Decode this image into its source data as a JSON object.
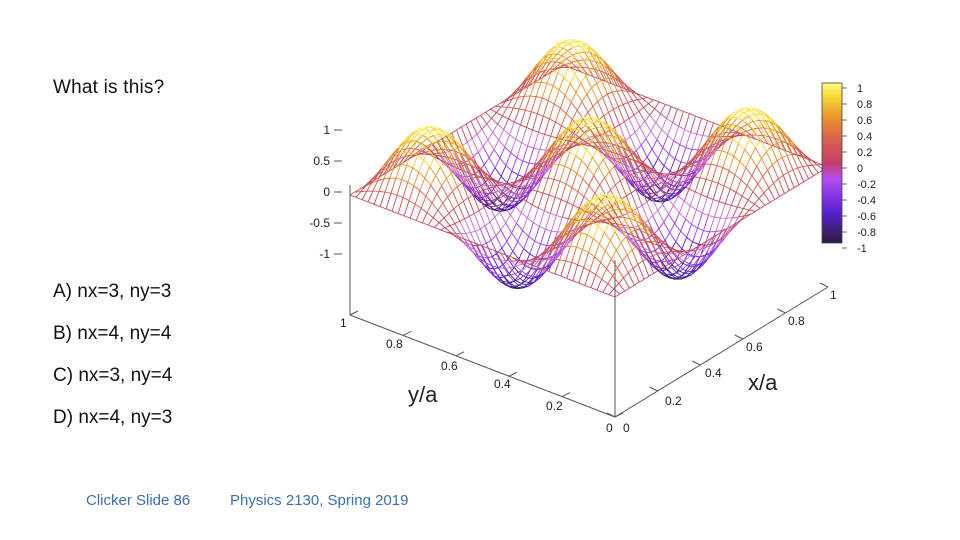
{
  "slide": {
    "question": "What is this?",
    "choices": [
      "A) nx=3, ny=3",
      "B) nx=4, ny=4",
      "C) nx=3, ny=4",
      "D) nx=4, ny=3"
    ],
    "footer_left": "Clicker Slide 86",
    "footer_center": "Physics 2130, Spring 2019"
  },
  "plot": {
    "xlabel": "x/a",
    "ylabel": "y/a",
    "x_ticks": [
      "0",
      "0.2",
      "0.4",
      "0.6",
      "0.8",
      "1"
    ],
    "y_ticks": [
      "0",
      "0.2",
      "0.4",
      "0.6",
      "0.8",
      "1"
    ],
    "z_ticks": [
      "1",
      "0.5",
      "0",
      "-0.5",
      "-1"
    ],
    "colorbar_ticks": [
      "1",
      "0.8",
      "0.6",
      "0.4",
      "0.2",
      "0",
      "-0.2",
      "-0.4",
      "-0.6",
      "-0.8",
      "-1"
    ],
    "palette": [
      "#2b1d3f",
      "#5b1fd6",
      "#9b3cf0",
      "#c86ad8",
      "#d9604a",
      "#e8902a",
      "#f7e03a",
      "#fffb8a"
    ]
  }
}
